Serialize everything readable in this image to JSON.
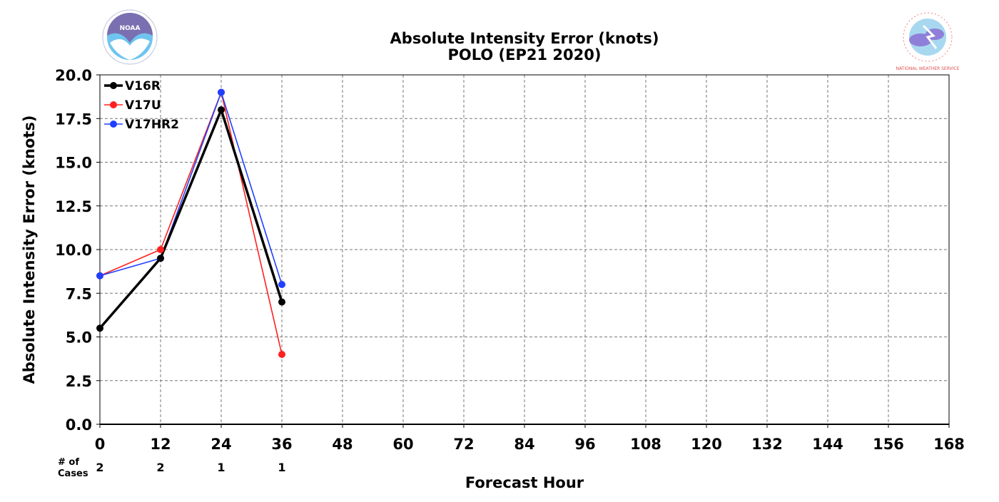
{
  "chart_data": {
    "type": "line",
    "title": "Absolute Intensity Error (knots)",
    "subtitle": "POLO (EP21 2020)",
    "xlabel": "Forecast Hour",
    "ylabel": "Absolute Intensity Error (knots)",
    "xlim": [
      0,
      168
    ],
    "ylim": [
      0,
      20
    ],
    "x_ticks": [
      0,
      12,
      24,
      36,
      48,
      60,
      72,
      84,
      96,
      108,
      120,
      132,
      144,
      156,
      168
    ],
    "y_ticks": [
      "0.0",
      "2.5",
      "5.0",
      "7.5",
      "10.0",
      "12.5",
      "15.0",
      "17.5",
      "20.0"
    ],
    "grid": true,
    "legend_position": "top-left",
    "cases_label": "# of\nCases",
    "cases": [
      {
        "x": 0,
        "count": "2"
      },
      {
        "x": 12,
        "count": "2"
      },
      {
        "x": 24,
        "count": "1"
      },
      {
        "x": 36,
        "count": "1"
      }
    ],
    "series": [
      {
        "name": "V16R",
        "color": "#000000",
        "x": [
          0,
          12,
          24,
          36
        ],
        "values": [
          5.5,
          9.5,
          18.0,
          7.0
        ]
      },
      {
        "name": "V17U",
        "color": "#ff2020",
        "x": [
          0,
          12,
          24,
          36
        ],
        "values": [
          8.5,
          10.0,
          19.0,
          4.0
        ]
      },
      {
        "name": "V17HR2",
        "color": "#2040ff",
        "x": [
          0,
          12,
          24,
          36
        ],
        "values": [
          8.5,
          9.5,
          19.0,
          8.0
        ]
      }
    ]
  },
  "logos": {
    "left": {
      "text": "NOAA",
      "icon": "noaa-logo-icon"
    },
    "right": {
      "text": "NATIONAL WEATHER SERVICE",
      "icon": "nws-logo-icon"
    }
  }
}
